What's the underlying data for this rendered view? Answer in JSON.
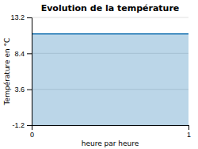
{
  "chart_data": {
    "type": "area",
    "title": "Evolution de la température",
    "xlabel": "heure par heure",
    "ylabel": "Température en °C",
    "x": [
      0,
      1
    ],
    "values": [
      11.0,
      11.0
    ],
    "xlim": [
      0,
      1
    ],
    "xticks": [
      0,
      1
    ],
    "ylim": [
      -1.2,
      13.2
    ],
    "yticks": [
      -1.2,
      3.6,
      8.4,
      13.2
    ],
    "grid": "y"
  }
}
